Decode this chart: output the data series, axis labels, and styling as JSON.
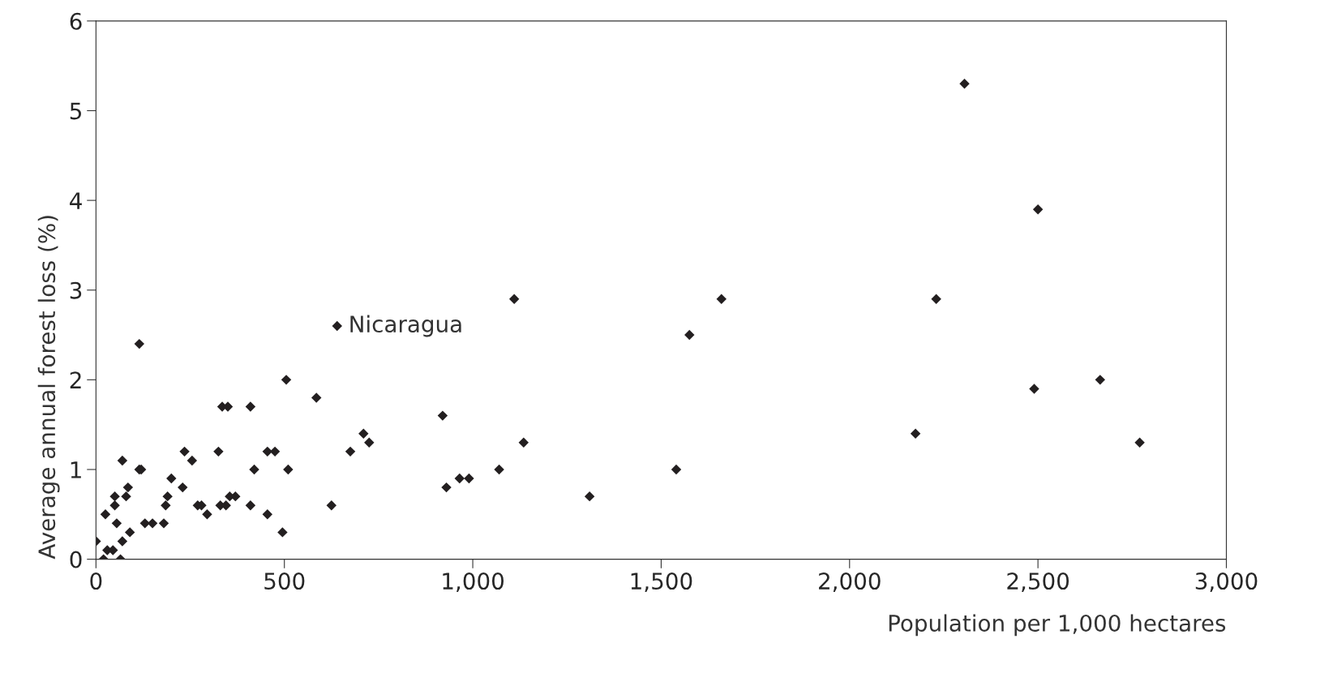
{
  "chart_data": {
    "type": "scatter",
    "xlabel": "Population per 1,000 hectares",
    "ylabel": "Average annual forest loss (%)",
    "x": [
      0,
      20,
      25,
      30,
      45,
      50,
      50,
      55,
      70,
      65,
      70,
      80,
      85,
      90,
      115,
      120,
      115,
      130,
      150,
      180,
      185,
      190,
      200,
      230,
      235,
      255,
      270,
      280,
      295,
      325,
      330,
      335,
      350,
      345,
      355,
      370,
      410,
      410,
      420,
      455,
      455,
      475,
      495,
      505,
      510,
      585,
      625,
      640,
      675,
      710,
      725,
      920,
      930,
      965,
      990,
      1070,
      1110,
      1135,
      1310,
      1540,
      1575,
      1660,
      2175,
      2230,
      2305,
      2490,
      2500,
      2665,
      2770
    ],
    "values": [
      0.2,
      0,
      0.5,
      0.1,
      0.1,
      0.6,
      0.7,
      0.4,
      1.1,
      0,
      0.2,
      0.7,
      0.8,
      0.3,
      1.0,
      1.0,
      2.4,
      0.4,
      0.4,
      0.4,
      0.6,
      0.7,
      0.9,
      0.8,
      1.2,
      1.1,
      0.6,
      0.6,
      0.5,
      1.2,
      0.6,
      1.7,
      1.7,
      0.6,
      0.7,
      0.7,
      1.7,
      0.6,
      1.0,
      1.2,
      0.5,
      1.2,
      0.3,
      2.0,
      1.0,
      1.8,
      0.6,
      2.6,
      1.2,
      1.4,
      1.3,
      1.6,
      0.8,
      0.9,
      0.9,
      1.0,
      2.9,
      1.3,
      0.7,
      1.0,
      2.5,
      2.9,
      1.4,
      2.9,
      5.3,
      1.9,
      3.9,
      2.0,
      1.3
    ],
    "color": "#231f20",
    "marker": "diamond",
    "grid": false,
    "xlim": [
      0,
      3000
    ],
    "xticks": [
      0,
      500,
      {
        "value": 1000,
        "label": "1,000"
      },
      {
        "value": 1500,
        "label": "1,500"
      },
      {
        "value": 2000,
        "label": "2,000"
      },
      {
        "value": 2500,
        "label": "2,500"
      },
      {
        "value": 3000,
        "label": "3,000"
      }
    ],
    "ylim": [
      0,
      6
    ],
    "yticks": [
      0,
      1,
      2,
      3,
      4,
      5,
      6
    ],
    "annotations": [
      {
        "text": "Nicaragua",
        "x": 640,
        "y": 2.6
      }
    ]
  }
}
